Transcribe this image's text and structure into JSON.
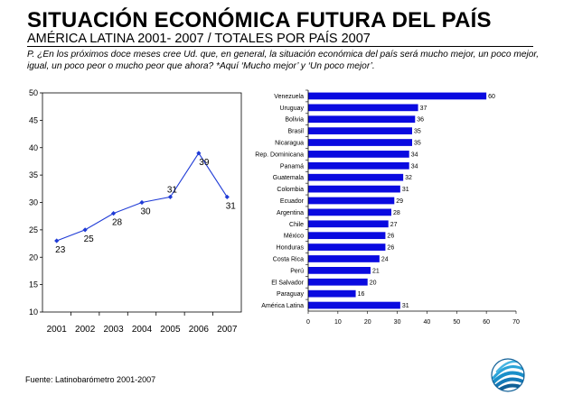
{
  "header": {
    "title": "SITUACIÓN ECONÓMICA FUTURA DEL PAÍS",
    "subtitle": "AMÉRICA LATINA 2001- 2007 / TOTALES POR PAÍS 2007",
    "question": "P. ¿En los próximos doce meses cree Ud. que, en general, la situación económica del país será mucho mejor, un poco mejor, igual, un poco peor o mucho  peor que ahora? *Aquí ‘Mucho mejor’ y ‘Un poco mejor’."
  },
  "footer": {
    "source": "Fuente: Latinobarómetro 2001-2007"
  },
  "colors": {
    "line": "#1f3bd6",
    "bar": "#0a0ae0",
    "axis": "#000000"
  },
  "logo": {
    "icon": "latinobarometro-logo-icon"
  },
  "chart_data": [
    {
      "type": "line",
      "x": [
        "2001",
        "2002",
        "2003",
        "2004",
        "2005",
        "2006",
        "2007"
      ],
      "series": [
        {
          "values": [
            23,
            25,
            28,
            30,
            31,
            39,
            31
          ]
        }
      ],
      "ylim": [
        10,
        50
      ],
      "yticks": [
        10,
        15,
        20,
        25,
        30,
        35,
        40,
        45,
        50
      ],
      "grid": false
    },
    {
      "type": "bar",
      "orientation": "horizontal",
      "categories": [
        "Venezuela",
        "Uruguay",
        "Bolivia",
        "Brasil",
        "Nicaragua",
        "Rep. Dominicana",
        "Panamá",
        "Guatemala",
        "Colombia",
        "Ecuador",
        "Argentina",
        "Chile",
        "México",
        "Honduras",
        "Costa Rica",
        "Perú",
        "El Salvador",
        "Paraguay",
        "América Latina"
      ],
      "values": [
        60,
        37,
        36,
        35,
        35,
        34,
        34,
        32,
        31,
        29,
        28,
        27,
        26,
        26,
        24,
        21,
        20,
        16,
        31
      ],
      "xlim": [
        0,
        70
      ],
      "xticks": [
        0,
        10,
        20,
        30,
        40,
        50,
        60,
        70
      ],
      "grid": false
    }
  ]
}
